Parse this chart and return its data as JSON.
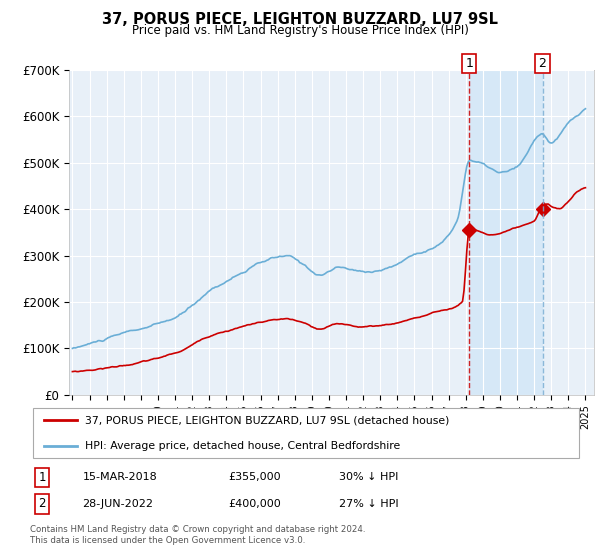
{
  "title": "37, PORUS PIECE, LEIGHTON BUZZARD, LU7 9SL",
  "subtitle": "Price paid vs. HM Land Registry's House Price Index (HPI)",
  "legend_line1": "37, PORUS PIECE, LEIGHTON BUZZARD, LU7 9SL (detached house)",
  "legend_line2": "HPI: Average price, detached house, Central Bedfordshire",
  "footnote": "Contains HM Land Registry data © Crown copyright and database right 2024.\nThis data is licensed under the Open Government Licence v3.0.",
  "table_rows": [
    {
      "num": "1",
      "date": "15-MAR-2018",
      "price": "£355,000",
      "hpi": "30% ↓ HPI"
    },
    {
      "num": "2",
      "date": "28-JUN-2022",
      "price": "£400,000",
      "hpi": "27% ↓ HPI"
    }
  ],
  "sale1_year": 2018.21,
  "sale1_price": 355000,
  "sale2_year": 2022.49,
  "sale2_price": 400000,
  "hpi_color": "#6aaed6",
  "price_color": "#cc0000",
  "vline1_color": "#cc0000",
  "vline2_color": "#7bafd4",
  "shade_color": "#d6e8f7",
  "plot_bg": "#e8f0f8",
  "grid_color": "#ffffff",
  "ylim": [
    0,
    700000
  ],
  "yticks": [
    0,
    100000,
    200000,
    300000,
    400000,
    500000,
    600000,
    700000
  ],
  "ytick_labels": [
    "£0",
    "£100K",
    "£200K",
    "£300K",
    "£400K",
    "£500K",
    "£600K",
    "£700K"
  ],
  "xmin": 1994.8,
  "xmax": 2025.5,
  "vline1_x": 2018.21,
  "vline2_x": 2022.49,
  "marker1_label": "1",
  "marker2_label": "2"
}
